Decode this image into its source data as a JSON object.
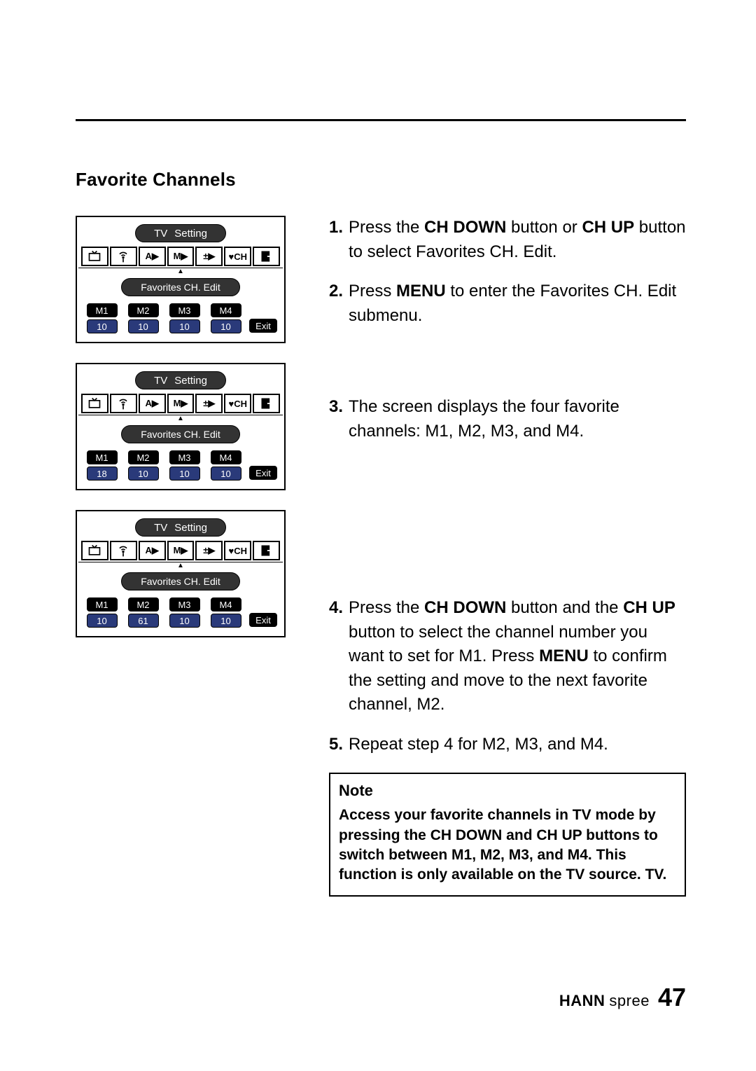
{
  "section_title": "Favorite Channels",
  "tv_title_a": "TV",
  "tv_title_b": "Setting",
  "sub_label": "Favorites CH. Edit",
  "exit_label": "Exit",
  "mem_labels": [
    "M1",
    "M2",
    "M3",
    "M4"
  ],
  "tab_glyphs": [
    "tv",
    "antenna",
    "A▶",
    "M▶",
    "±▶",
    "♥CH",
    "exit"
  ],
  "panels": [
    {
      "values": [
        "10",
        "10",
        "10",
        "10"
      ]
    },
    {
      "values": [
        "18",
        "10",
        "10",
        "10"
      ]
    },
    {
      "values": [
        "10",
        "61",
        "10",
        "10"
      ]
    }
  ],
  "steps": [
    {
      "n": "1.",
      "html": "Press the <b>CH DOWN</b> button or <b>CH UP</b> button to select Favorites CH. Edit."
    },
    {
      "n": "2.",
      "html": "Press <b>MENU</b> to enter the Favorites CH. Edit submenu."
    },
    {
      "n": "3.",
      "html": "The screen displays the four favorite channels: M1, M2, M3, and M4."
    },
    {
      "n": "4.",
      "html": "Press the <b>CH DOWN</b> button and the <b>CH UP</b> button to select the channel number you want to set for M1. Press <b>MENU</b> to confirm the setting and move to the next favorite channel, M2."
    },
    {
      "n": "5.",
      "html": "Repeat step 4 for M2, M3, and M4."
    }
  ],
  "note_title": "Note",
  "note_body": "Access your favorite channels in TV mode by pressing the CH DOWN and CH UP buttons to switch between M1, M2, M3, and M4. This function is only available on the TV source. TV.",
  "brand_bold": "HANN",
  "brand_light": "spree",
  "page_number": "47",
  "colors": {
    "pill_bg": "#000000",
    "val_bg": "#2a3a7a",
    "oval_bg": "#333333"
  }
}
